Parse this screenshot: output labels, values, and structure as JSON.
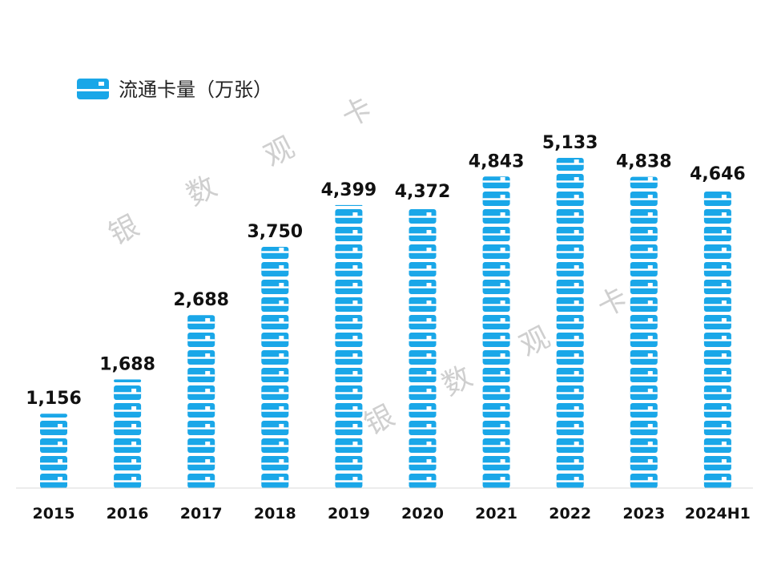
{
  "chart_data": {
    "type": "bar",
    "title": "",
    "xlabel": "",
    "ylabel": "",
    "categories": [
      "2015",
      "2016",
      "2017",
      "2018",
      "2019",
      "2020",
      "2021",
      "2022",
      "2023",
      "2024H1"
    ],
    "series": [
      {
        "name": "流通卡量（万张）",
        "values": [
          1156,
          1688,
          2688,
          3750,
          4399,
          4372,
          4843,
          5133,
          4838,
          4646
        ],
        "value_labels": [
          "1,156",
          "1,688",
          "2,688",
          "3,750",
          "4,399",
          "4,372",
          "4,843",
          "5,133",
          "4,838",
          "4,646"
        ]
      }
    ],
    "ylim": [
      0,
      5133
    ],
    "grid": false,
    "legend": "top-left",
    "bar_style": "stacked card pictograph",
    "color": "#1aa7e8"
  },
  "watermark": {
    "chars": [
      "银",
      "数",
      "观",
      "卡"
    ]
  }
}
